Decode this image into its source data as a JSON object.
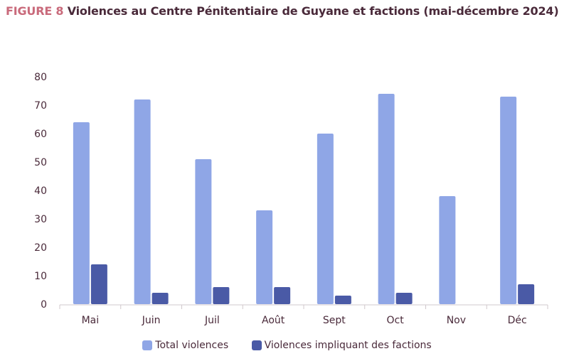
{
  "header": {
    "figure_label": "FIGURE 8",
    "title": "Violences au Centre Pénitentiaire de Guyane et factions (mai-décembre 2024)"
  },
  "colors": {
    "series1": "#8fa6e6",
    "series2": "#4a5aa6",
    "axis": "#d0c8cc",
    "text": "#4a2a3a",
    "figure_label": "#c96a7b"
  },
  "chart_data": {
    "type": "bar",
    "title": "Violences au Centre Pénitentiaire de Guyane et factions (mai-décembre 2024)",
    "categories": [
      "Mai",
      "Juin",
      "Juil",
      "Août",
      "Sept",
      "Oct",
      "Nov",
      "Déc"
    ],
    "series": [
      {
        "name": "Total violences",
        "values": [
          64,
          72,
          51,
          33,
          60,
          74,
          38,
          73
        ]
      },
      {
        "name": "Violences impliquant des factions",
        "values": [
          14,
          4,
          6,
          6,
          3,
          4,
          0,
          7
        ]
      }
    ],
    "y_ticks": [
      "0",
      "10",
      "20",
      "30",
      "40",
      "50",
      "60",
      "70",
      "80"
    ],
    "ylim": [
      0,
      80
    ],
    "grid": false,
    "legend_position": "bottom"
  }
}
